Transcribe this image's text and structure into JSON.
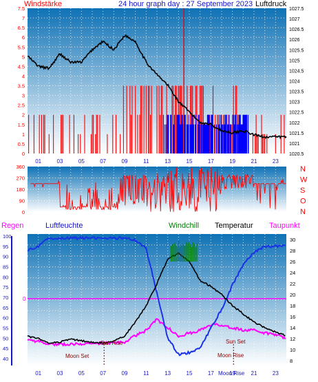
{
  "title": "24 hour graph day : 27 September 2023",
  "colors": {
    "sky_top": "#0f72b6",
    "sky_bottom": "#ffffff",
    "wind": "#ff0000",
    "gust_blue": "#0000ff",
    "pressure": "#000000",
    "humidity": "#1a32e6",
    "dewpoint": "#ff00ff",
    "windchill": "#008000",
    "temperature": "#000000",
    "rain": "#ff00ff",
    "grid": "#ffffff",
    "label_blue": "#1414c8"
  },
  "time_ticks": [
    "01",
    "03",
    "05",
    "07",
    "09",
    "11",
    "13",
    "15",
    "17",
    "19",
    "21",
    "23"
  ],
  "chart_data": [
    {
      "id": "wind-pressure",
      "type": "bar",
      "left_label": "Windstärke",
      "right_label": "Luftdruck",
      "wind_ylim": [
        0,
        7.5
      ],
      "wind_ticks": [
        "0",
        "0.5",
        "1",
        "1.5",
        "2",
        "2.5",
        "3",
        "3.5",
        "4",
        "4.5",
        "5",
        "5.5",
        "6",
        "6.5",
        "7",
        "7.5"
      ],
      "pressure_ylim": [
        1020.5,
        1027.5
      ],
      "pressure_ticks": [
        "1020.5",
        "1021",
        "1021.5",
        "1022",
        "1022.5",
        "1023",
        "1023.5",
        "1024",
        "1024.5",
        "1025",
        "1025.5",
        "1026",
        "1026.5",
        "1027",
        "1027.5"
      ],
      "pressure_hourly": {
        "x": [
          0,
          1,
          2,
          3,
          4,
          5,
          6,
          7,
          8,
          9,
          10,
          11,
          12,
          13,
          14,
          15,
          16,
          17,
          18,
          19,
          20,
          21,
          22,
          23,
          24
        ],
        "y": [
          1025.2,
          1024.7,
          1024.6,
          1025.3,
          1024.9,
          1024.9,
          1025.5,
          1025.9,
          1025.5,
          1026.2,
          1025.9,
          1024.9,
          1024.3,
          1023.8,
          1023.0,
          1022.5,
          1022.0,
          1021.9,
          1021.6,
          1021.5,
          1021.6,
          1021.4,
          1021.3,
          1021.3,
          1021.3
        ]
      },
      "wind_segments": [
        {
          "from": 0,
          "to": 8.6,
          "value": 2
        },
        {
          "from": 8.6,
          "to": 15.6,
          "value": 3.5
        },
        {
          "from": 15.6,
          "to": 20.0,
          "value": 2
        },
        {
          "from": 20.0,
          "to": 24,
          "value": 1.5
        }
      ],
      "wind_max_gust": {
        "x": 14.5,
        "value": 7.5
      }
    },
    {
      "id": "wind-direction",
      "type": "line",
      "ylim": [
        0,
        360
      ],
      "ticks": [
        "0",
        "90",
        "180",
        "270",
        "360"
      ],
      "compass": [
        "N",
        "W",
        "S",
        "O",
        "N"
      ],
      "baseline_direction": 225
    },
    {
      "id": "temp-humidity",
      "type": "line",
      "labels": {
        "rain": "Regen",
        "humidity": "Luftfeuchte",
        "windchill": "Windchill",
        "temperature": "Temperatur",
        "dewpoint": "Taupunkt"
      },
      "humidity_ylim": [
        40,
        100
      ],
      "humidity_ticks": [
        "40",
        "45",
        "50",
        "55",
        "60",
        "65",
        "70",
        "75",
        "80",
        "85",
        "90",
        "95",
        "100"
      ],
      "temp_ylim": [
        8,
        30
      ],
      "temp_ticks": [
        "8",
        "10",
        "12",
        "14",
        "16",
        "18",
        "20",
        "22",
        "24",
        "26",
        "28",
        "30"
      ],
      "rain_label": "0",
      "events": {
        "sun_rise": "Sun Rise",
        "sun_set": "Sun Set",
        "moon_set": "Moon Set",
        "moon_rise": "Moon Rise",
        "moon_rise_bottom": "Moon Rise"
      },
      "humidity_hourly": {
        "x": [
          0,
          1,
          2,
          3,
          4,
          5,
          6,
          7,
          8,
          9,
          10,
          11,
          12,
          13,
          14,
          15,
          16,
          17,
          18,
          19,
          20,
          21,
          22,
          23,
          24
        ],
        "y": [
          93,
          95,
          99,
          99,
          99,
          99,
          99,
          99,
          99,
          99,
          98,
          94,
          72,
          50,
          42,
          43,
          45,
          55,
          64,
          76,
          86,
          92,
          95,
          95,
          95
        ]
      },
      "temperature_hourly": {
        "x": [
          0,
          1,
          2,
          3,
          4,
          5,
          6,
          7,
          8,
          9,
          10,
          11,
          12,
          13,
          14,
          15,
          16,
          17,
          18,
          19,
          20,
          21,
          22,
          23,
          24
        ],
        "y": [
          12.4,
          12.0,
          11.2,
          11.4,
          11.9,
          11.6,
          11.3,
          11.2,
          11.5,
          12.5,
          15.0,
          18.0,
          22.0,
          26.5,
          27.5,
          26.0,
          22.5,
          21.5,
          20.0,
          18.0,
          16.5,
          15.0,
          14.0,
          13.2,
          12.5
        ]
      },
      "dewpoint_hourly": {
        "x": [
          0,
          1,
          2,
          3,
          4,
          5,
          6,
          7,
          8,
          9,
          10,
          11,
          12,
          13,
          14,
          15,
          16,
          17,
          18,
          19,
          20,
          21,
          22,
          23,
          24
        ],
        "y": [
          11.7,
          11.5,
          11.0,
          11.0,
          11.0,
          11.1,
          11.0,
          11.2,
          11.2,
          11.4,
          12.5,
          13.5,
          15.5,
          14.0,
          12.5,
          13.0,
          13.5,
          14.5,
          14.5,
          14.0,
          13.5,
          13.5,
          13.0,
          12.8,
          12.0
        ]
      },
      "windchill_peak": {
        "from": 13.3,
        "to": 15.8,
        "value": 30
      }
    }
  ]
}
